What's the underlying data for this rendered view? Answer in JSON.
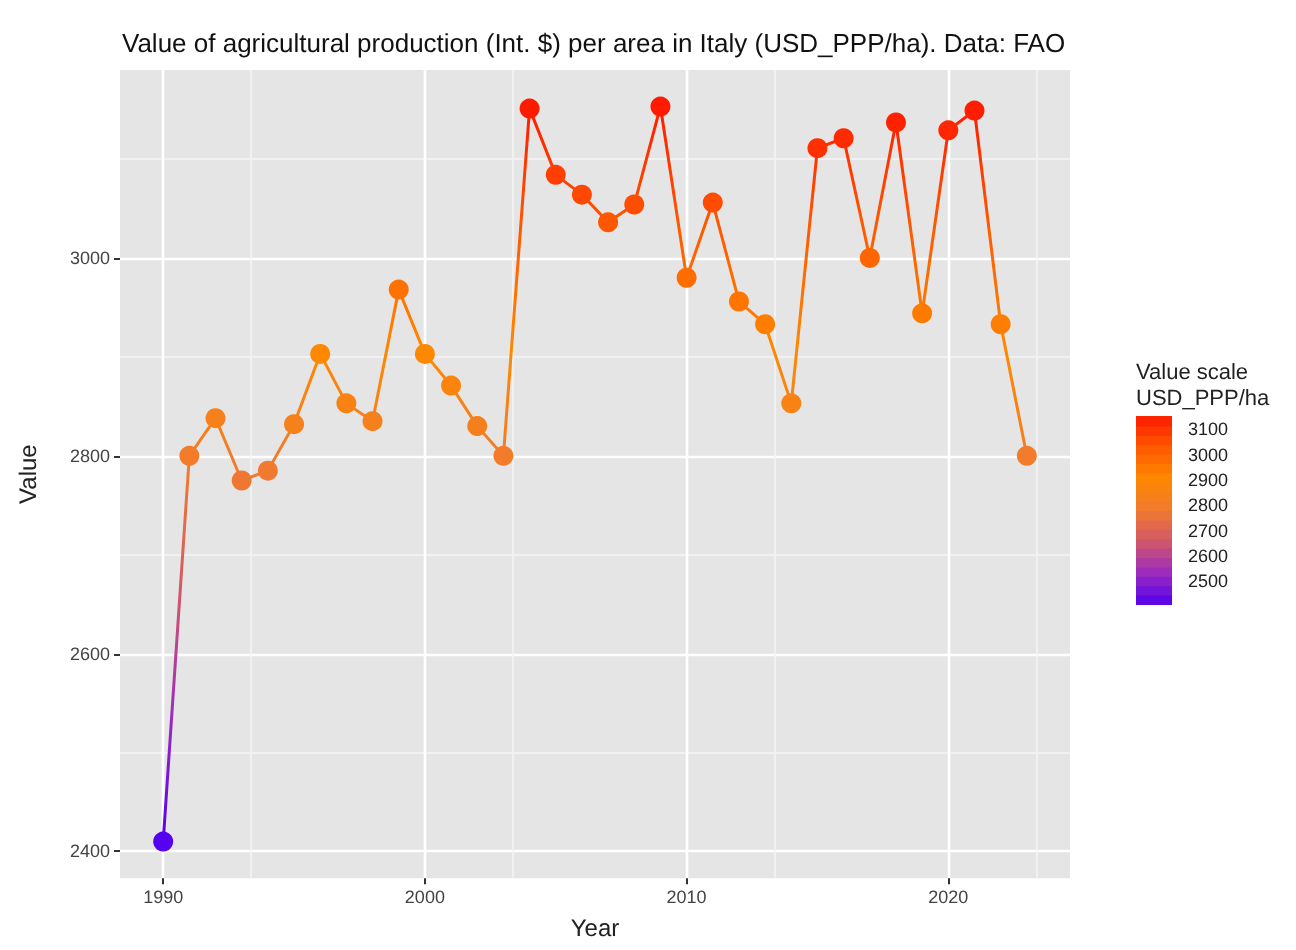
{
  "chart_data": {
    "type": "line",
    "title": "Value of agricultural production (Int. $) per area in Italy (USD_PPP/ha). Data: FAO",
    "xlabel": "Year",
    "ylabel": "Value",
    "clabel": "Value scale\nUSD_PPP/ha",
    "x": [
      1990,
      1991,
      1992,
      1993,
      1994,
      1995,
      1996,
      1997,
      1998,
      1999,
      2000,
      2001,
      2002,
      2003,
      2004,
      2005,
      2006,
      2007,
      2008,
      2009,
      2010,
      2011,
      2012,
      2013,
      2014,
      2015,
      2016,
      2017,
      2018,
      2019,
      2020,
      2021,
      2022,
      2023
    ],
    "values": [
      2410,
      2800,
      2838,
      2775,
      2785,
      2832,
      2903,
      2853,
      2835,
      2968,
      2903,
      2871,
      2830,
      2800,
      3151,
      3084,
      3064,
      3036,
      3054,
      3153,
      2980,
      3056,
      2956,
      2933,
      2853,
      3111,
      3121,
      3000,
      3137,
      2944,
      3129,
      3149,
      2933,
      2800
    ],
    "clim": [
      2410,
      3153
    ],
    "cticks": [
      2500,
      2600,
      2700,
      2800,
      2900,
      3000,
      3100
    ],
    "xlim": [
      1988.35,
      2024.65
    ],
    "xticks": [
      1990,
      2000,
      2010,
      2020
    ],
    "ylim": [
      2373,
      3190
    ],
    "yticks": [
      2400,
      2600,
      2800,
      3000
    ],
    "grid": true,
    "marker": "circle",
    "line_style": "solid"
  }
}
